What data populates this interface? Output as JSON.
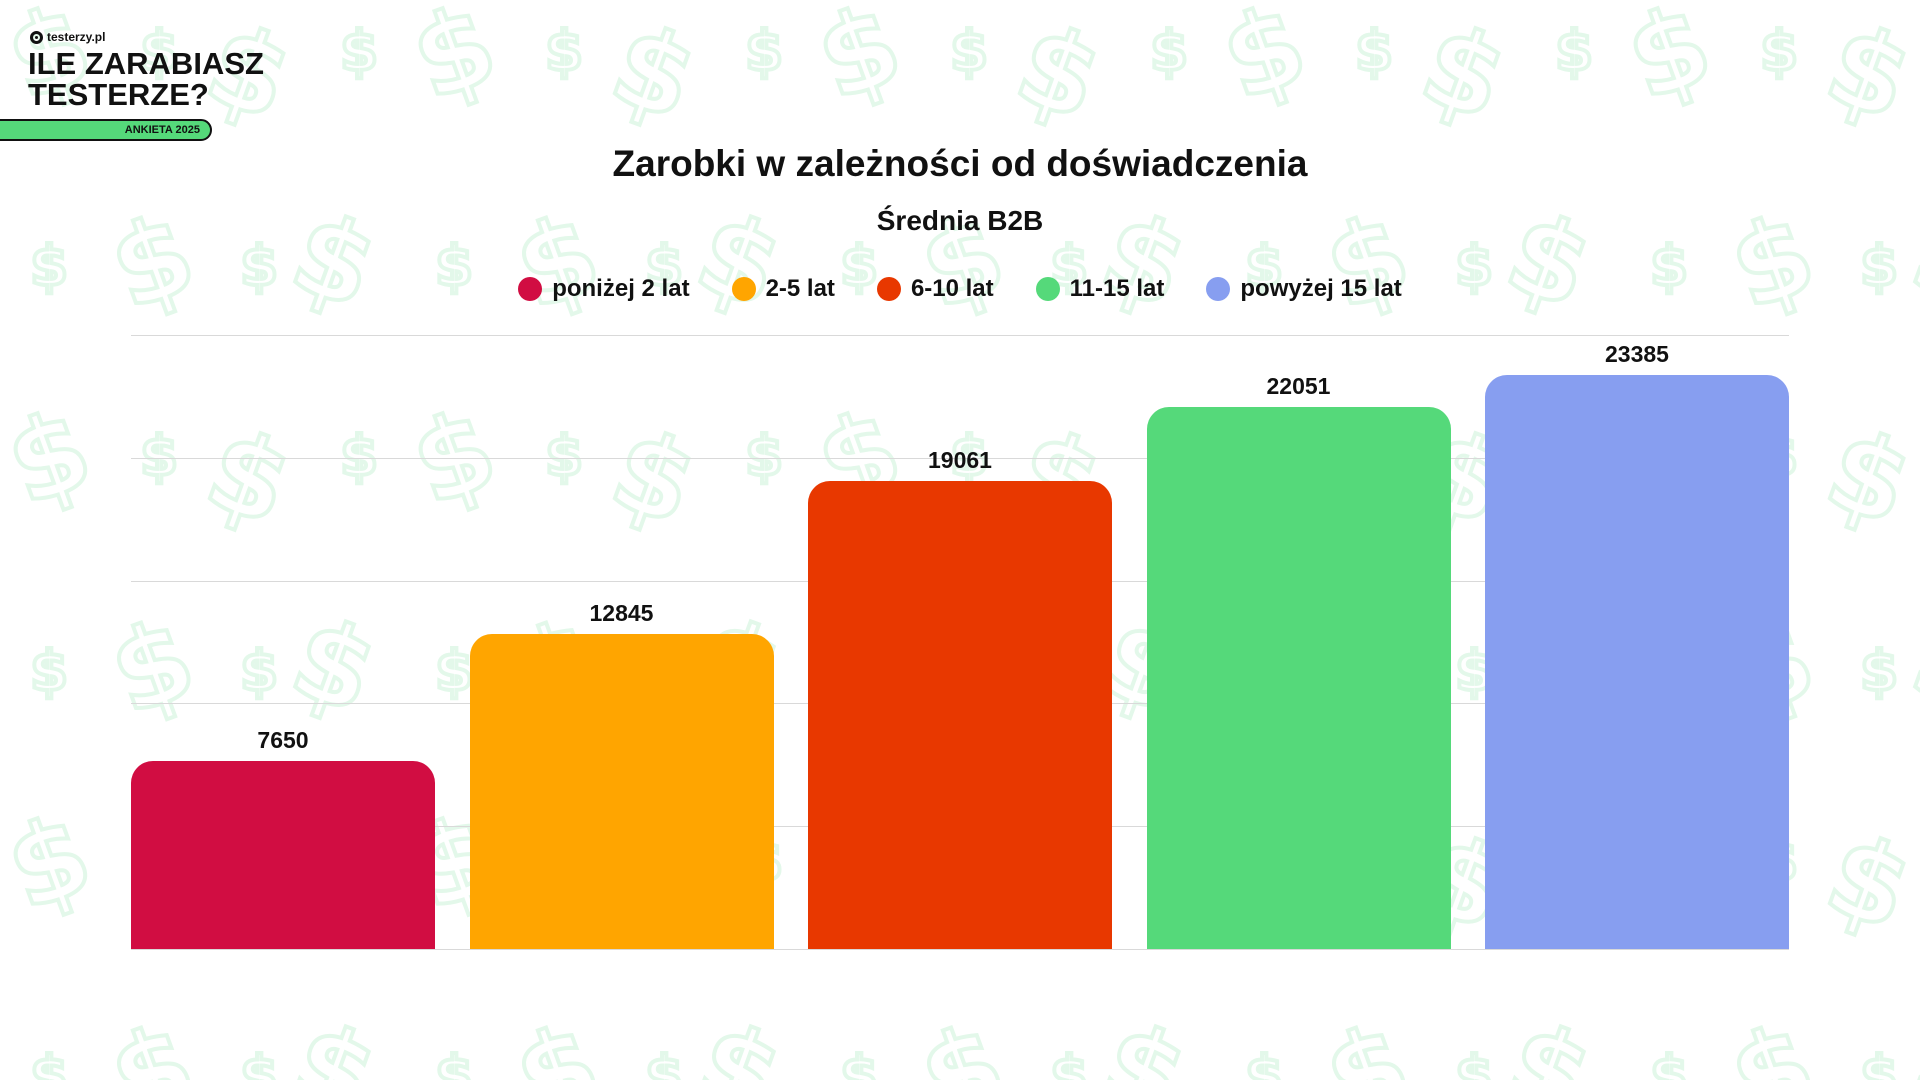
{
  "brand": {
    "logo_text": "testerzy.pl",
    "headline_line1": "ILE ZARABIASZ",
    "headline_line2": "TESTERZE?",
    "badge": "ANKIETA 2025",
    "badge_color": "#55d97a"
  },
  "chart_data": {
    "type": "bar",
    "title": "Zarobki w zależności od doświadczenia",
    "subtitle": "Średnia B2B",
    "categories": [
      "poniżej 2 lat",
      "2-5 lat",
      "6-10 lat",
      "11-15 lat",
      "powyżej 15 lat"
    ],
    "values": [
      7650,
      12845,
      19061,
      22051,
      23385
    ],
    "colors": [
      "#d10d42",
      "#ffa500",
      "#e83800",
      "#55d97a",
      "#879ef0"
    ],
    "xlabel": "",
    "ylabel": "",
    "ylim": [
      0,
      25000
    ],
    "gridlines": [
      0,
      5000,
      10000,
      15000,
      20000,
      25000
    ],
    "grid": true,
    "legend_position": "top",
    "data_labels": [
      "7650",
      "12845",
      "19061",
      "22051",
      "23385"
    ]
  },
  "legend": [
    {
      "label": "poniżej 2 lat",
      "color": "#d10d42"
    },
    {
      "label": "2-5 lat",
      "color": "#ffa500"
    },
    {
      "label": "6-10 lat",
      "color": "#e83800"
    },
    {
      "label": "11-15 lat",
      "color": "#55d97a"
    },
    {
      "label": "powyżej 15 lat",
      "color": "#879ef0"
    }
  ],
  "background_icon": "dollar-sign-icon"
}
